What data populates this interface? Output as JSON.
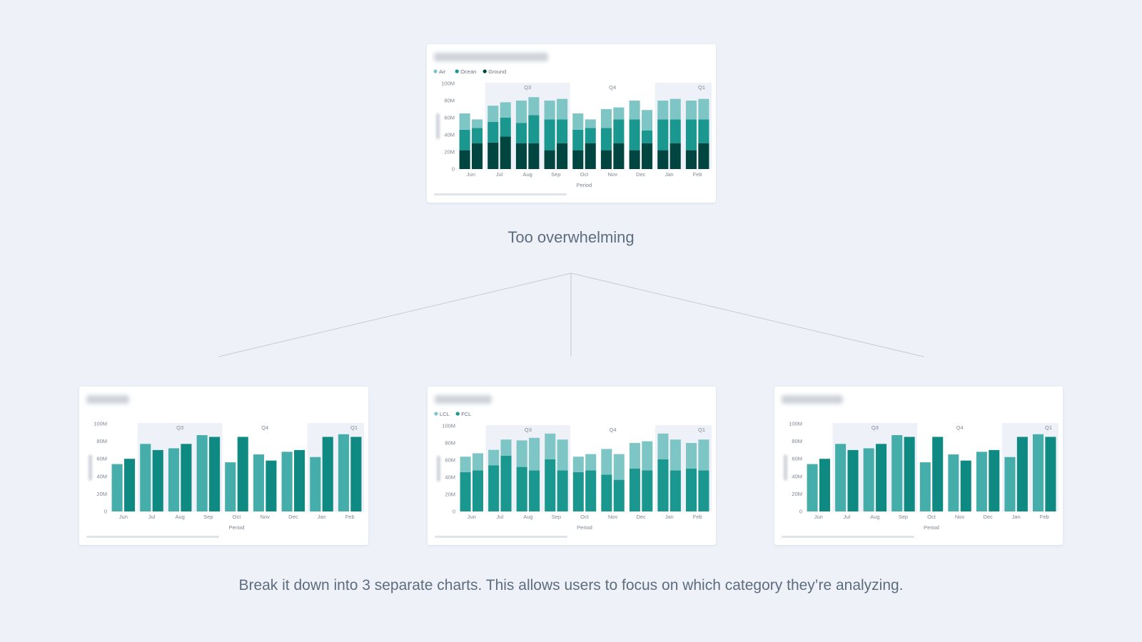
{
  "captions": {
    "top": "Too overwhelming",
    "bottom": "Break it down into 3 separate charts. This allows users to focus on which category they’re analyzing."
  },
  "colors": {
    "background": "#eef2f8",
    "light": "#7ec6c5",
    "medium": "#1a9890",
    "dark": "#00453f",
    "bar_a": "#45aeab",
    "bar_b": "#0e8a82",
    "quarter_band": "#eef1f7",
    "connector": "#c3cbd8"
  },
  "chart_data": [
    {
      "id": "overview",
      "type": "bar",
      "stacked": true,
      "xlabel": "Period",
      "ylabel": "",
      "yticks": [
        "0",
        "20M",
        "40M",
        "60M",
        "80M",
        "100M"
      ],
      "ylim": [
        0,
        100
      ],
      "categories": [
        "Jun",
        "Jul",
        "Aug",
        "Sep",
        "Oct",
        "Nov",
        "Dec",
        "Jan",
        "Feb"
      ],
      "quarters": [
        {
          "label": "Q3",
          "from": "Jul",
          "to": "Sep",
          "shaded": true
        },
        {
          "label": "Q4",
          "from": "Oct",
          "to": "Dec",
          "shaded": false
        },
        {
          "label": "Q1",
          "from": "Jan",
          "to": "Feb",
          "shaded": true
        }
      ],
      "legend": [
        "Air",
        "Ocean",
        "Ground"
      ],
      "series": [
        {
          "name": "Ground",
          "color": "dark",
          "values": [
            [
              22,
              30
            ],
            [
              31,
              38
            ],
            [
              30,
              30
            ],
            [
              22,
              30
            ],
            [
              22,
              30
            ],
            [
              22,
              30
            ],
            [
              22,
              30
            ],
            [
              22,
              30
            ],
            [
              22,
              30
            ]
          ]
        },
        {
          "name": "Ocean",
          "color": "medium",
          "values": [
            [
              24,
              18
            ],
            [
              24,
              22
            ],
            [
              24,
              33
            ],
            [
              36,
              28
            ],
            [
              24,
              18
            ],
            [
              26,
              28
            ],
            [
              36,
              15
            ],
            [
              36,
              28
            ],
            [
              36,
              28
            ]
          ]
        },
        {
          "name": "Air",
          "color": "light",
          "values": [
            [
              19,
              10
            ],
            [
              19,
              18
            ],
            [
              26,
              21
            ],
            [
              22,
              24
            ],
            [
              19,
              10
            ],
            [
              22,
              14
            ],
            [
              22,
              24
            ],
            [
              22,
              24
            ],
            [
              22,
              24
            ]
          ]
        }
      ]
    },
    {
      "id": "left",
      "type": "bar",
      "xlabel": "Period",
      "ylabel": "",
      "yticks": [
        "0",
        "20M",
        "40M",
        "60M",
        "80M",
        "100M"
      ],
      "ylim": [
        0,
        100
      ],
      "categories": [
        "Jun",
        "Jul",
        "Aug",
        "Sep",
        "Oct",
        "Nov",
        "Dec",
        "Jan",
        "Feb"
      ],
      "quarters": [
        {
          "label": "Q3",
          "from": "Jul",
          "to": "Sep",
          "shaded": true
        },
        {
          "label": "Q4",
          "from": "Oct",
          "to": "Dec",
          "shaded": false
        },
        {
          "label": "Q1",
          "from": "Jan",
          "to": "Feb",
          "shaded": true
        }
      ],
      "legend": [],
      "series": [
        {
          "name": "",
          "color": "bar_a",
          "values": [
            54,
            77,
            72,
            87,
            56,
            65,
            68,
            62,
            88
          ]
        },
        {
          "name": "",
          "color": "bar_b",
          "values": [
            60,
            70,
            77,
            85,
            85,
            58,
            70,
            85,
            85
          ]
        }
      ]
    },
    {
      "id": "middle",
      "type": "bar",
      "stacked": true,
      "xlabel": "Period",
      "ylabel": "",
      "yticks": [
        "0",
        "20M",
        "40M",
        "60M",
        "80M",
        "100M"
      ],
      "ylim": [
        0,
        100
      ],
      "categories": [
        "Jun",
        "Jul",
        "Aug",
        "Sep",
        "Oct",
        "Nov",
        "Dec",
        "Jan",
        "Feb"
      ],
      "quarters": [
        {
          "label": "Q3",
          "from": "Jul",
          "to": "Sep",
          "shaded": true
        },
        {
          "label": "Q4",
          "from": "Oct",
          "to": "Dec",
          "shaded": false
        },
        {
          "label": "Q1",
          "from": "Jan",
          "to": "Feb",
          "shaded": true
        }
      ],
      "legend": [
        "LCL",
        "FCL"
      ],
      "series": [
        {
          "name": "FCL",
          "color": "medium",
          "values": [
            [
              46,
              48
            ],
            [
              54,
              65
            ],
            [
              52,
              48
            ],
            [
              61,
              48
            ],
            [
              46,
              48
            ],
            [
              43,
              37
            ],
            [
              50,
              48
            ],
            [
              61,
              48
            ],
            [
              50,
              48
            ]
          ]
        },
        {
          "name": "LCL",
          "color": "light",
          "values": [
            [
              18,
              20
            ],
            [
              18,
              19
            ],
            [
              31,
              38
            ],
            [
              30,
              36
            ],
            [
              18,
              19
            ],
            [
              30,
              30
            ],
            [
              30,
              34
            ],
            [
              30,
              36
            ],
            [
              30,
              36
            ]
          ]
        }
      ]
    },
    {
      "id": "right",
      "type": "bar",
      "xlabel": "Period",
      "ylabel": "",
      "yticks": [
        "0",
        "20M",
        "40M",
        "60M",
        "80M",
        "100M"
      ],
      "ylim": [
        0,
        100
      ],
      "categories": [
        "Jun",
        "Jul",
        "Aug",
        "Sep",
        "Oct",
        "Nov",
        "Dec",
        "Jan",
        "Feb"
      ],
      "quarters": [
        {
          "label": "Q3",
          "from": "Jul",
          "to": "Sep",
          "shaded": true
        },
        {
          "label": "Q4",
          "from": "Oct",
          "to": "Dec",
          "shaded": false
        },
        {
          "label": "Q1",
          "from": "Jan",
          "to": "Feb",
          "shaded": true
        }
      ],
      "legend": [],
      "series": [
        {
          "name": "",
          "color": "bar_a",
          "values": [
            54,
            77,
            72,
            87,
            56,
            65,
            68,
            62,
            88
          ]
        },
        {
          "name": "",
          "color": "bar_b",
          "values": [
            60,
            70,
            77,
            85,
            85,
            58,
            70,
            85,
            85
          ]
        }
      ]
    }
  ]
}
